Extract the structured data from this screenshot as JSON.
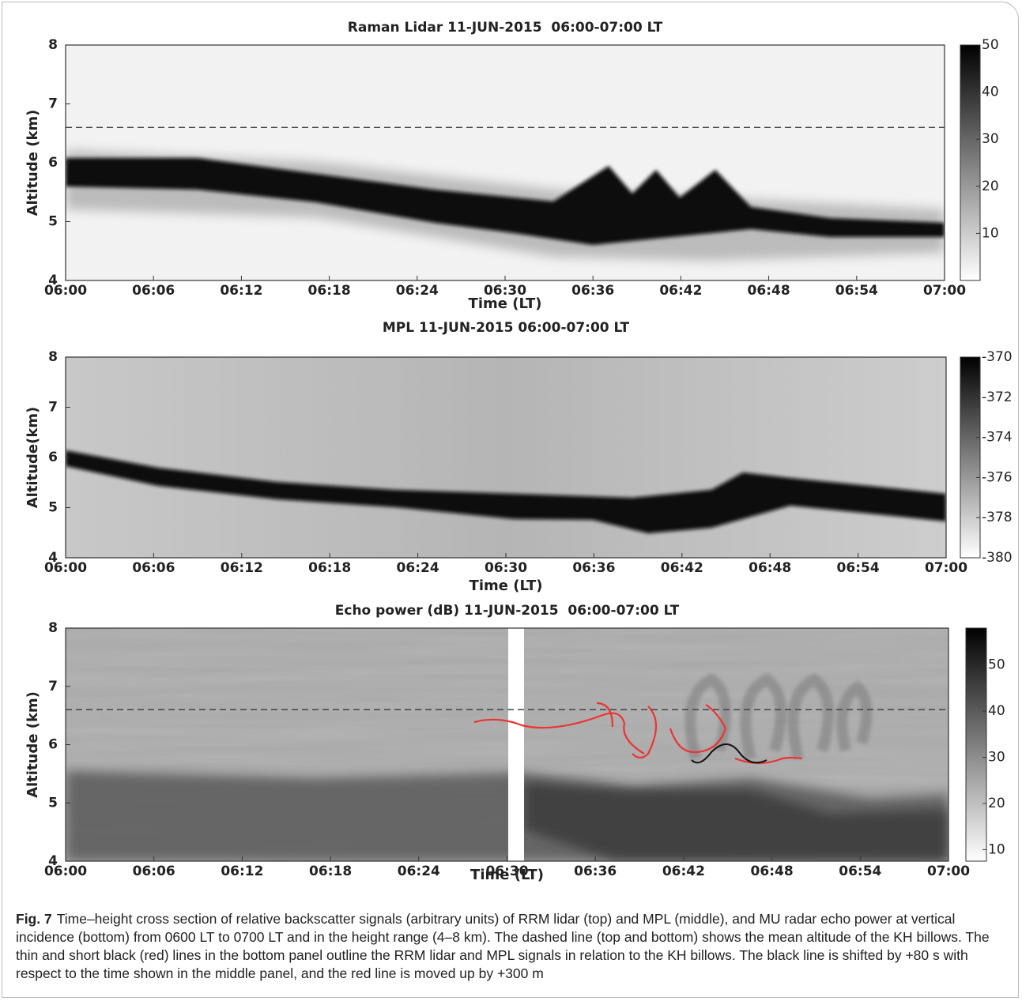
{
  "chart_data": [
    {
      "type": "heatmap",
      "title": "Raman Lidar 11-JUN-2015  06:00-07:00 LT",
      "xlabel": "Time (LT)",
      "ylabel": "Altitude (km)",
      "xlim": [
        0,
        60
      ],
      "xticks": [
        {
          "value": 0,
          "label": "06:00"
        },
        {
          "value": 6,
          "label": "06:06"
        },
        {
          "value": 12,
          "label": "06:12"
        },
        {
          "value": 18,
          "label": "06:18"
        },
        {
          "value": 24,
          "label": "06:24"
        },
        {
          "value": 30,
          "label": "06:30"
        },
        {
          "value": 36,
          "label": "06:36"
        },
        {
          "value": 42,
          "label": "06:42"
        },
        {
          "value": 48,
          "label": "06:48"
        },
        {
          "value": 54,
          "label": "06:54"
        },
        {
          "value": 60,
          "label": "07:00"
        }
      ],
      "ylim": [
        4,
        8
      ],
      "yticks": [
        4,
        5,
        6,
        7,
        8
      ],
      "clim": [
        0,
        50
      ],
      "cticks": [
        10,
        20,
        30,
        40,
        50
      ],
      "hline": 6.6
    },
    {
      "type": "heatmap",
      "title": "MPL 11-JUN-2015 06:00-07:00 LT",
      "xlabel": "Time (LT)",
      "ylabel": "Altitude(km)",
      "xlim": [
        0,
        60
      ],
      "xticks": [
        {
          "value": 0,
          "label": "06:00"
        },
        {
          "value": 6,
          "label": "06:06"
        },
        {
          "value": 12,
          "label": "06:12"
        },
        {
          "value": 18,
          "label": "06:18"
        },
        {
          "value": 24,
          "label": "06:24"
        },
        {
          "value": 30,
          "label": "06:30"
        },
        {
          "value": 36,
          "label": "06:36"
        },
        {
          "value": 42,
          "label": "06:42"
        },
        {
          "value": 48,
          "label": "06:48"
        },
        {
          "value": 54,
          "label": "06:54"
        },
        {
          "value": 60,
          "label": "07:00"
        }
      ],
      "ylim": [
        4,
        8
      ],
      "yticks": [
        4,
        5,
        6,
        7,
        8
      ],
      "clim": [
        -380,
        -370
      ],
      "cticks": [
        -380,
        -378,
        -376,
        -374,
        -372,
        -370
      ]
    },
    {
      "type": "heatmap",
      "title": "Echo power (dB) 11-JUN-2015  06:00-07:00 LT",
      "xlabel": "Time (LT)",
      "ylabel": "Altitude (km)",
      "xlim": [
        0,
        60
      ],
      "xticks": [
        {
          "value": 0,
          "label": "06:00"
        },
        {
          "value": 6,
          "label": "06:06"
        },
        {
          "value": 12,
          "label": "06:12"
        },
        {
          "value": 18,
          "label": "06:18"
        },
        {
          "value": 24,
          "label": "06:24"
        },
        {
          "value": 30,
          "label": "06:30"
        },
        {
          "value": 36,
          "label": "06:36"
        },
        {
          "value": 42,
          "label": "06:42"
        },
        {
          "value": 48,
          "label": "06:48"
        },
        {
          "value": 54,
          "label": "06:54"
        },
        {
          "value": 60,
          "label": "07:00"
        }
      ],
      "ylim": [
        4,
        8
      ],
      "yticks": [
        4,
        5,
        6,
        7,
        8
      ],
      "clim": [
        7.5,
        58
      ],
      "cticks": [
        10,
        20,
        30,
        40,
        50
      ],
      "hline": 6.6
    }
  ],
  "caption": {
    "label": "Fig. 7",
    "text": "Time–height cross section of relative backscatter signals (arbitrary units) of RRM lidar (top) and MPL (middle), and MU radar echo power at vertical incidence (bottom) from 0600 LT to 0700 LT and in the height range (4–8 km). The dashed line (top and bottom) shows the mean altitude of the KH billows. The thin and short black (red) lines in the bottom panel outline the RRM lidar and MPL signals in relation to the KH billows. The black line is shifted by +80 s with respect to the time shown in the middle panel, and the red line is moved up by +300 m"
  }
}
